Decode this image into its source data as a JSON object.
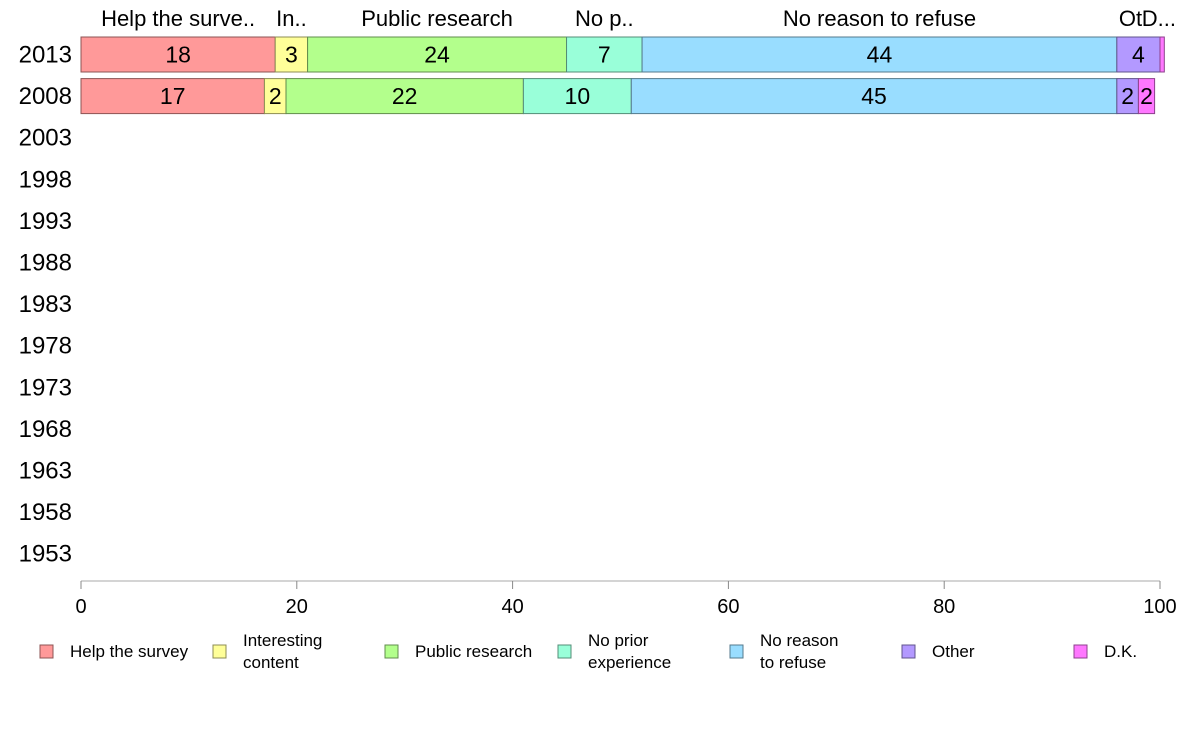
{
  "chart_data": {
    "type": "bar",
    "orientation": "horizontal",
    "stacked": true,
    "categories": [
      "2013",
      "2008",
      "2003",
      "1998",
      "1993",
      "1988",
      "1983",
      "1978",
      "1973",
      "1968",
      "1963",
      "1958",
      "1953"
    ],
    "series": [
      {
        "name": "Help the survey",
        "color": "#ff9999",
        "values": [
          18,
          17,
          null,
          null,
          null,
          null,
          null,
          null,
          null,
          null,
          null,
          null,
          null
        ],
        "header_label": "Help the surve.."
      },
      {
        "name": "Interesting content",
        "color": "#ffff99",
        "values": [
          3,
          2,
          null,
          null,
          null,
          null,
          null,
          null,
          null,
          null,
          null,
          null,
          null
        ],
        "header_label": "In.."
      },
      {
        "name": "Public research",
        "color": "#b3ff8c",
        "values": [
          24,
          22,
          null,
          null,
          null,
          null,
          null,
          null,
          null,
          null,
          null,
          null,
          null
        ],
        "header_label": "Public research"
      },
      {
        "name": "No prior experience",
        "color": "#99ffd9",
        "values": [
          7,
          10,
          null,
          null,
          null,
          null,
          null,
          null,
          null,
          null,
          null,
          null,
          null
        ],
        "header_label": "No p.."
      },
      {
        "name": "No reason to refuse",
        "color": "#99ddff",
        "values": [
          44,
          45,
          null,
          null,
          null,
          null,
          null,
          null,
          null,
          null,
          null,
          null,
          null
        ],
        "header_label": "No reason to refuse"
      },
      {
        "name": "Other",
        "color": "#b399ff",
        "values": [
          4,
          2,
          null,
          null,
          null,
          null,
          null,
          null,
          null,
          null,
          null,
          null,
          null
        ],
        "header_label": "Ot"
      },
      {
        "name": "D.K.",
        "color": "#ff77ff",
        "values": [
          0.4,
          1.5,
          null,
          null,
          null,
          null,
          null,
          null,
          null,
          null,
          null,
          null,
          null
        ],
        "header_label": "D..."
      }
    ],
    "data_labels": [
      [
        "18",
        "3",
        "24",
        "7",
        "44",
        "4",
        ""
      ],
      [
        "17",
        "2",
        "22",
        "10",
        "45",
        "2",
        "2"
      ]
    ],
    "legend": {
      "placement": "bottom",
      "entries": [
        {
          "lines": [
            "Help the survey"
          ]
        },
        {
          "lines": [
            "Interesting",
            "content"
          ]
        },
        {
          "lines": [
            "Public research"
          ]
        },
        {
          "lines": [
            "No prior",
            "experience"
          ]
        },
        {
          "lines": [
            "No reason",
            "to refuse"
          ]
        },
        {
          "lines": [
            "Other"
          ]
        },
        {
          "lines": [
            "D.K."
          ]
        }
      ]
    },
    "xlim": [
      0,
      100
    ],
    "xticks": [
      "0",
      "20",
      "40",
      "60",
      "80",
      "100"
    ],
    "title": "",
    "xlabel": "",
    "ylabel": "",
    "grid": false
  }
}
